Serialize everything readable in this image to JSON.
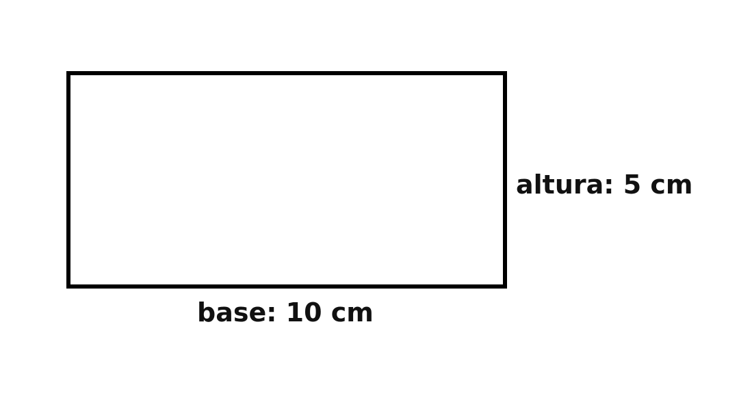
{
  "diagram": {
    "shape": "rectangle",
    "height_label": "altura: 5 cm",
    "base_label": "base: 10 cm",
    "colors": {
      "stroke": "#000000",
      "text": "#111111",
      "background": "#ffffff"
    }
  }
}
